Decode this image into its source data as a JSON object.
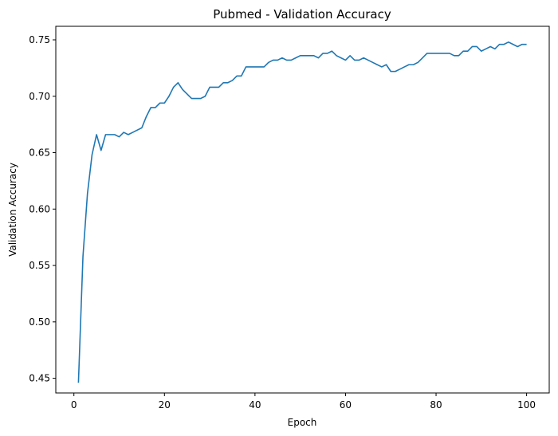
{
  "chart_data": {
    "type": "line",
    "title": "Pubmed - Validation Accuracy",
    "xlabel": "Epoch",
    "ylabel": "Validation Accuracy",
    "xlim": [
      -4,
      105
    ],
    "ylim": [
      0.437,
      0.762
    ],
    "xticks": [
      0,
      20,
      40,
      60,
      80,
      100
    ],
    "yticks": [
      0.45,
      0.5,
      0.55,
      0.6,
      0.65,
      0.7,
      0.75
    ],
    "xtick_labels": [
      "0",
      "20",
      "40",
      "60",
      "80",
      "100"
    ],
    "ytick_labels": [
      "0.45",
      "0.50",
      "0.55",
      "0.60",
      "0.65",
      "0.70",
      "0.75"
    ],
    "grid": false,
    "line_color": "#1f77b4",
    "series": [
      {
        "x": [
          1,
          2,
          3,
          4,
          5,
          6,
          7,
          8,
          9,
          10,
          11,
          12,
          13,
          14,
          15,
          16,
          17,
          18,
          19,
          20,
          21,
          22,
          23,
          24,
          25,
          26,
          27,
          28,
          29,
          30,
          31,
          32,
          33,
          34,
          35,
          36,
          37,
          38,
          39,
          40,
          41,
          42,
          43,
          44,
          45,
          46,
          47,
          48,
          49,
          50,
          51,
          52,
          53,
          54,
          55,
          56,
          57,
          58,
          59,
          60,
          61,
          62,
          63,
          64,
          65,
          66,
          67,
          68,
          69,
          70,
          71,
          72,
          73,
          74,
          75,
          76,
          77,
          78,
          79,
          80,
          81,
          82,
          83,
          84,
          85,
          86,
          87,
          88,
          89,
          90,
          91,
          92,
          93,
          94,
          95,
          96,
          97,
          98,
          99,
          100
        ],
        "values": [
          0.446,
          0.558,
          0.614,
          0.648,
          0.666,
          0.652,
          0.666,
          0.666,
          0.666,
          0.664,
          0.668,
          0.666,
          0.668,
          0.67,
          0.672,
          0.682,
          0.69,
          0.69,
          0.694,
          0.694,
          0.7,
          0.708,
          0.712,
          0.706,
          0.702,
          0.698,
          0.698,
          0.698,
          0.7,
          0.708,
          0.708,
          0.708,
          0.712,
          0.712,
          0.714,
          0.718,
          0.718,
          0.726,
          0.726,
          0.726,
          0.726,
          0.726,
          0.73,
          0.732,
          0.732,
          0.734,
          0.732,
          0.732,
          0.734,
          0.736,
          0.736,
          0.736,
          0.736,
          0.734,
          0.738,
          0.738,
          0.74,
          0.736,
          0.734,
          0.732,
          0.736,
          0.732,
          0.732,
          0.734,
          0.732,
          0.73,
          0.728,
          0.726,
          0.728,
          0.722,
          0.722,
          0.724,
          0.726,
          0.728,
          0.728,
          0.73,
          0.734,
          0.738,
          0.738,
          0.738,
          0.738,
          0.738,
          0.738,
          0.736,
          0.736,
          0.74,
          0.74,
          0.744,
          0.744,
          0.74,
          0.742,
          0.744,
          0.742,
          0.746,
          0.746,
          0.748,
          0.746,
          0.744,
          0.746,
          0.746
        ]
      }
    ]
  }
}
